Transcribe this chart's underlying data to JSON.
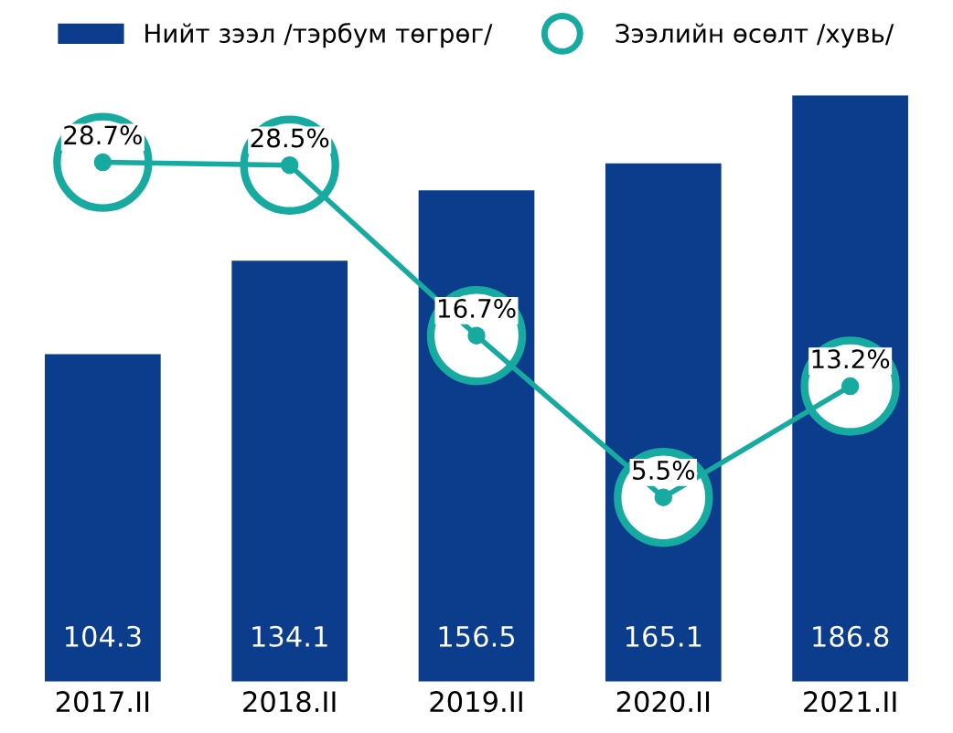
{
  "chart_data": {
    "type": "bar",
    "categories": [
      "2017.II",
      "2018.II",
      "2019.II",
      "2020.II",
      "2021.II"
    ],
    "series": [
      {
        "name": "Нийт зээл /тэрбум төгрөг/",
        "type": "bar",
        "color": "#0b3d8c",
        "values": [
          104.3,
          134.1,
          156.5,
          165.1,
          186.8
        ]
      },
      {
        "name": "Зээлийн өсөлт /хувь/",
        "type": "line",
        "axis": "y2",
        "color": "#17aaa0",
        "values": [
          28.7,
          28.5,
          16.7,
          5.5,
          13.2
        ],
        "value_labels": [
          "28.7%",
          "28.5%",
          "16.7%",
          "5.5%",
          "13.2%"
        ]
      }
    ],
    "data_labels": true,
    "marker": "circle",
    "legend": "top",
    "grid": false,
    "tick_labels": "x"
  }
}
